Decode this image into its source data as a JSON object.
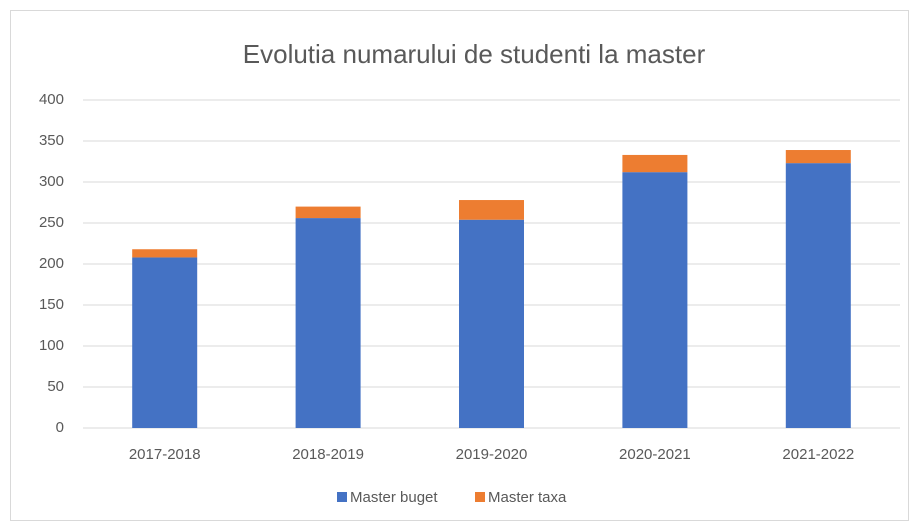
{
  "chart_data": {
    "type": "stacked_bar",
    "title": "Evolutia numarului de studenti la master",
    "categories": [
      "2017-2018",
      "2018-2019",
      "2019-2020",
      "2020-2021",
      "2021-2022"
    ],
    "series": [
      {
        "name": "Master buget",
        "color": "#4472c4",
        "values": [
          208,
          256,
          254,
          312,
          323
        ]
      },
      {
        "name": "Master taxa",
        "color": "#ed7d31",
        "values": [
          10,
          14,
          24,
          21,
          16
        ]
      }
    ],
    "ylim": [
      0,
      400
    ],
    "yticks": [
      0,
      50,
      100,
      150,
      200,
      250,
      300,
      350,
      400
    ],
    "grid": true,
    "legend": "bottom"
  }
}
